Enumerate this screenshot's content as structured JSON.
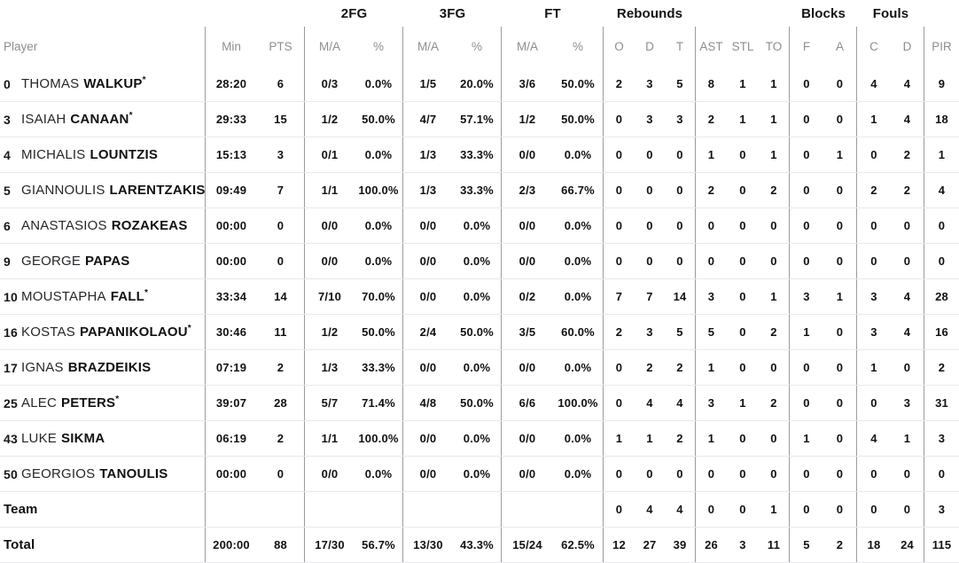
{
  "header": {
    "player_label": "Player",
    "groups": [
      "2FG",
      "3FG",
      "FT",
      "Rebounds",
      "Blocks",
      "Fouls"
    ],
    "columns": [
      "Min",
      "PTS",
      "M/A",
      "%",
      "M/A",
      "%",
      "M/A",
      "%",
      "O",
      "D",
      "T",
      "AST",
      "STL",
      "TO",
      "F",
      "A",
      "C",
      "D",
      "PIR"
    ]
  },
  "colors": {
    "text_dark": "#111115",
    "text_gray": "#8e8e92",
    "column_divider": "#9b9b9e",
    "row_line": "#e9e9ec",
    "background": "#ffffff"
  },
  "rows": [
    {
      "type": "player",
      "num": "0",
      "first": "THOMAS",
      "last": "WALKUP",
      "star": "*",
      "min": "28:20",
      "pts": "6",
      "fg2_ma": "0/3",
      "fg2_pct": "0.0%",
      "fg3_ma": "1/5",
      "fg3_pct": "20.0%",
      "ft_ma": "3/6",
      "ft_pct": "50.0%",
      "reb_o": "2",
      "reb_d": "3",
      "reb_t": "5",
      "ast": "8",
      "stl": "1",
      "to": "1",
      "blk_f": "0",
      "blk_a": "0",
      "foul_c": "4",
      "foul_d": "4",
      "pir": "9"
    },
    {
      "type": "player",
      "num": "3",
      "first": "ISAIAH",
      "last": "CANAAN",
      "star": "*",
      "min": "29:33",
      "pts": "15",
      "fg2_ma": "1/2",
      "fg2_pct": "50.0%",
      "fg3_ma": "4/7",
      "fg3_pct": "57.1%",
      "ft_ma": "1/2",
      "ft_pct": "50.0%",
      "reb_o": "0",
      "reb_d": "3",
      "reb_t": "3",
      "ast": "2",
      "stl": "1",
      "to": "1",
      "blk_f": "0",
      "blk_a": "0",
      "foul_c": "1",
      "foul_d": "4",
      "pir": "18"
    },
    {
      "type": "player",
      "num": "4",
      "first": "MICHALIS",
      "last": "LOUNTZIS",
      "star": "",
      "min": "15:13",
      "pts": "3",
      "fg2_ma": "0/1",
      "fg2_pct": "0.0%",
      "fg3_ma": "1/3",
      "fg3_pct": "33.3%",
      "ft_ma": "0/0",
      "ft_pct": "0.0%",
      "reb_o": "0",
      "reb_d": "0",
      "reb_t": "0",
      "ast": "1",
      "stl": "0",
      "to": "1",
      "blk_f": "0",
      "blk_a": "1",
      "foul_c": "0",
      "foul_d": "2",
      "pir": "1"
    },
    {
      "type": "player",
      "num": "5",
      "first": "GIANNOULIS",
      "last": "LARENTZAKIS",
      "star": "",
      "min": "09:49",
      "pts": "7",
      "fg2_ma": "1/1",
      "fg2_pct": "100.0%",
      "fg3_ma": "1/3",
      "fg3_pct": "33.3%",
      "ft_ma": "2/3",
      "ft_pct": "66.7%",
      "reb_o": "0",
      "reb_d": "0",
      "reb_t": "0",
      "ast": "2",
      "stl": "0",
      "to": "2",
      "blk_f": "0",
      "blk_a": "0",
      "foul_c": "2",
      "foul_d": "2",
      "pir": "4"
    },
    {
      "type": "player",
      "num": "6",
      "first": "ANASTASIOS",
      "last": "ROZAKEAS",
      "star": "",
      "min": "00:00",
      "pts": "0",
      "fg2_ma": "0/0",
      "fg2_pct": "0.0%",
      "fg3_ma": "0/0",
      "fg3_pct": "0.0%",
      "ft_ma": "0/0",
      "ft_pct": "0.0%",
      "reb_o": "0",
      "reb_d": "0",
      "reb_t": "0",
      "ast": "0",
      "stl": "0",
      "to": "0",
      "blk_f": "0",
      "blk_a": "0",
      "foul_c": "0",
      "foul_d": "0",
      "pir": "0"
    },
    {
      "type": "player",
      "num": "9",
      "first": "GEORGE",
      "last": "PAPAS",
      "star": "",
      "min": "00:00",
      "pts": "0",
      "fg2_ma": "0/0",
      "fg2_pct": "0.0%",
      "fg3_ma": "0/0",
      "fg3_pct": "0.0%",
      "ft_ma": "0/0",
      "ft_pct": "0.0%",
      "reb_o": "0",
      "reb_d": "0",
      "reb_t": "0",
      "ast": "0",
      "stl": "0",
      "to": "0",
      "blk_f": "0",
      "blk_a": "0",
      "foul_c": "0",
      "foul_d": "0",
      "pir": "0"
    },
    {
      "type": "player",
      "num": "10",
      "first": "MOUSTAPHA",
      "last": "FALL",
      "star": "*",
      "min": "33:34",
      "pts": "14",
      "fg2_ma": "7/10",
      "fg2_pct": "70.0%",
      "fg3_ma": "0/0",
      "fg3_pct": "0.0%",
      "ft_ma": "0/2",
      "ft_pct": "0.0%",
      "reb_o": "7",
      "reb_d": "7",
      "reb_t": "14",
      "ast": "3",
      "stl": "0",
      "to": "1",
      "blk_f": "3",
      "blk_a": "1",
      "foul_c": "3",
      "foul_d": "4",
      "pir": "28"
    },
    {
      "type": "player",
      "num": "16",
      "first": "KOSTAS",
      "last": "PAPANIKOLAOU",
      "star": "*",
      "min": "30:46",
      "pts": "11",
      "fg2_ma": "1/2",
      "fg2_pct": "50.0%",
      "fg3_ma": "2/4",
      "fg3_pct": "50.0%",
      "ft_ma": "3/5",
      "ft_pct": "60.0%",
      "reb_o": "2",
      "reb_d": "3",
      "reb_t": "5",
      "ast": "5",
      "stl": "0",
      "to": "2",
      "blk_f": "1",
      "blk_a": "0",
      "foul_c": "3",
      "foul_d": "4",
      "pir": "16"
    },
    {
      "type": "player",
      "num": "17",
      "first": "IGNAS",
      "last": "BRAZDEIKIS",
      "star": "",
      "min": "07:19",
      "pts": "2",
      "fg2_ma": "1/3",
      "fg2_pct": "33.3%",
      "fg3_ma": "0/0",
      "fg3_pct": "0.0%",
      "ft_ma": "0/0",
      "ft_pct": "0.0%",
      "reb_o": "0",
      "reb_d": "2",
      "reb_t": "2",
      "ast": "1",
      "stl": "0",
      "to": "0",
      "blk_f": "0",
      "blk_a": "0",
      "foul_c": "1",
      "foul_d": "0",
      "pir": "2"
    },
    {
      "type": "player",
      "num": "25",
      "first": "ALEC",
      "last": "PETERS",
      "star": "*",
      "min": "39:07",
      "pts": "28",
      "fg2_ma": "5/7",
      "fg2_pct": "71.4%",
      "fg3_ma": "4/8",
      "fg3_pct": "50.0%",
      "ft_ma": "6/6",
      "ft_pct": "100.0%",
      "reb_o": "0",
      "reb_d": "4",
      "reb_t": "4",
      "ast": "3",
      "stl": "1",
      "to": "2",
      "blk_f": "0",
      "blk_a": "0",
      "foul_c": "0",
      "foul_d": "3",
      "pir": "31"
    },
    {
      "type": "player",
      "num": "43",
      "first": "LUKE",
      "last": "SIKMA",
      "star": "",
      "min": "06:19",
      "pts": "2",
      "fg2_ma": "1/1",
      "fg2_pct": "100.0%",
      "fg3_ma": "0/0",
      "fg3_pct": "0.0%",
      "ft_ma": "0/0",
      "ft_pct": "0.0%",
      "reb_o": "1",
      "reb_d": "1",
      "reb_t": "2",
      "ast": "1",
      "stl": "0",
      "to": "0",
      "blk_f": "1",
      "blk_a": "0",
      "foul_c": "4",
      "foul_d": "1",
      "pir": "3"
    },
    {
      "type": "player",
      "num": "50",
      "first": "GEORGIOS",
      "last": "TANOULIS",
      "star": "",
      "min": "00:00",
      "pts": "0",
      "fg2_ma": "0/0",
      "fg2_pct": "0.0%",
      "fg3_ma": "0/0",
      "fg3_pct": "0.0%",
      "ft_ma": "0/0",
      "ft_pct": "0.0%",
      "reb_o": "0",
      "reb_d": "0",
      "reb_t": "0",
      "ast": "0",
      "stl": "0",
      "to": "0",
      "blk_f": "0",
      "blk_a": "0",
      "foul_c": "0",
      "foul_d": "0",
      "pir": "0"
    },
    {
      "type": "team",
      "num": "",
      "first": "",
      "last": "Team",
      "star": "",
      "min": "",
      "pts": "",
      "fg2_ma": "",
      "fg2_pct": "",
      "fg3_ma": "",
      "fg3_pct": "",
      "ft_ma": "",
      "ft_pct": "",
      "reb_o": "0",
      "reb_d": "4",
      "reb_t": "4",
      "ast": "0",
      "stl": "0",
      "to": "1",
      "blk_f": "0",
      "blk_a": "0",
      "foul_c": "0",
      "foul_d": "0",
      "pir": "3"
    },
    {
      "type": "total",
      "num": "",
      "first": "",
      "last": "Total",
      "star": "",
      "min": "200:00",
      "pts": "88",
      "fg2_ma": "17/30",
      "fg2_pct": "56.7%",
      "fg3_ma": "13/30",
      "fg3_pct": "43.3%",
      "ft_ma": "15/24",
      "ft_pct": "62.5%",
      "reb_o": "12",
      "reb_d": "27",
      "reb_t": "39",
      "ast": "26",
      "stl": "3",
      "to": "11",
      "blk_f": "5",
      "blk_a": "2",
      "foul_c": "18",
      "foul_d": "24",
      "pir": "115"
    }
  ]
}
